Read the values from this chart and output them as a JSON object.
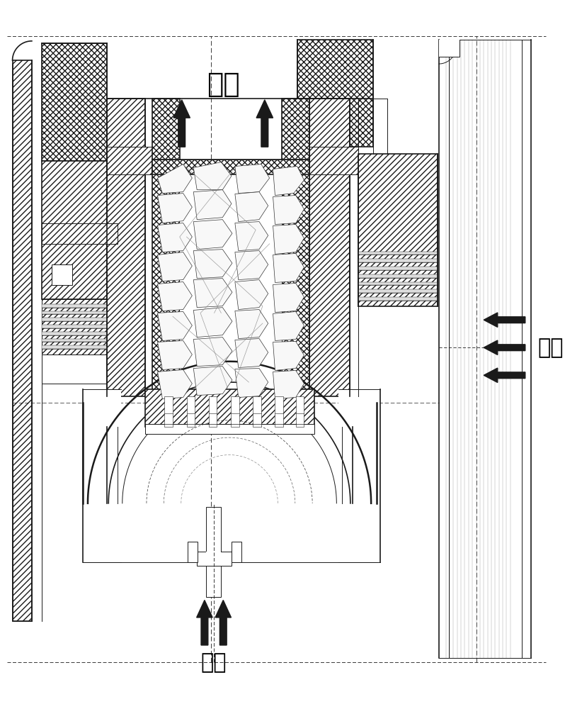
{
  "bg_color": "#ffffff",
  "line_color": "#1a1a1a",
  "text_color": "#000000",
  "label_outqi": "出气",
  "label_inqi_bottom": "进气",
  "label_inqi_right": "进气",
  "figsize": [
    7.98,
    10.0
  ],
  "dpi": 100
}
